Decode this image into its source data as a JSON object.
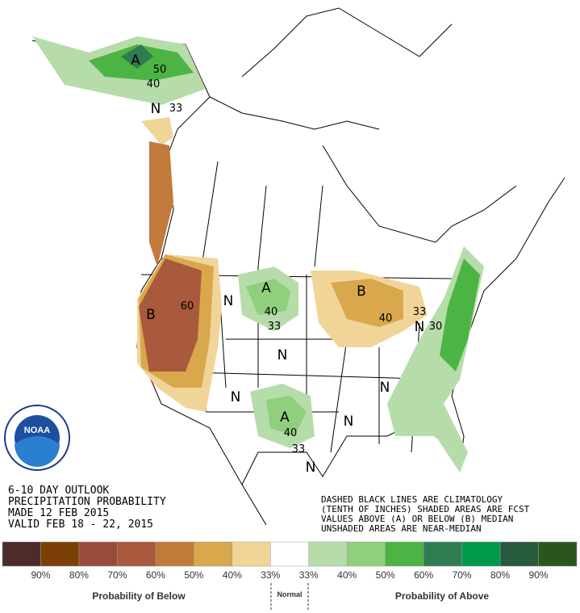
{
  "header": {
    "lines": [
      "6-10 DAY OUTLOOK",
      "PRECIPITATION PROBABILITY",
      "MADE  12 FEB 2015",
      "VALID  FEB 18 - 22, 2015"
    ]
  },
  "note": {
    "lines": [
      "DASHED BLACK LINES ARE CLIMATOLOGY",
      "(TENTH OF INCHES) SHADED AREAS ARE FCST",
      "VALUES ABOVE (A) OR BELOW (B) MEDIAN",
      "UNSHADED AREAS ARE NEAR-MEDIAN"
    ]
  },
  "logo": "NOAA",
  "map_labels": [
    "A",
    50,
    40,
    "N",
    33,
    "B",
    60,
    "N",
    "A",
    40,
    33,
    "B",
    40,
    33,
    "N",
    30,
    "N",
    "A",
    40,
    33,
    "N",
    "N",
    "N",
    "N"
  ],
  "legend": {
    "colors": [
      "#4d2b2b",
      "#7c3f05",
      "#9a4a3a",
      "#a9593c",
      "#c27a3b",
      "#d9a84c",
      "#f1d598",
      "#ffffff",
      "#b6dcaa",
      "#8fcf7d",
      "#4bb443",
      "#2f7c50",
      "#00994a",
      "#285a3d",
      "#2b561b"
    ],
    "labels": [
      "90%",
      "80%",
      "70%",
      "60%",
      "50%",
      "40%",
      "33%",
      "33%",
      "40%",
      "50%",
      "60%",
      "70%",
      "80%",
      "90%"
    ],
    "below": "Probability of Below",
    "normal": "Normal",
    "above": "Probability of Above"
  }
}
